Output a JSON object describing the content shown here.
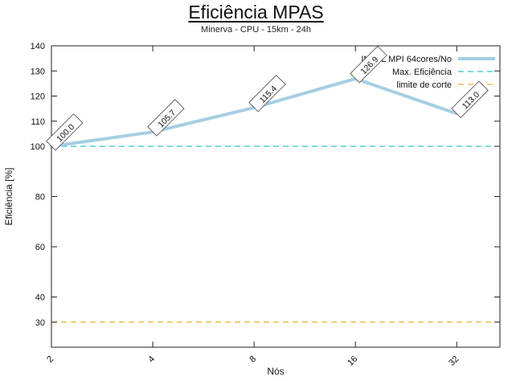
{
  "chart_data": {
    "type": "line",
    "title": "Eficiência MPAS",
    "subtitle": "Minerva - CPU - 15km - 24h",
    "xlabel": "Nós",
    "ylabel": "Eficiência [%]",
    "x_scale": "log2",
    "x": [
      2,
      4,
      8,
      16,
      32
    ],
    "xticks": [
      "2",
      "4",
      "8",
      "16",
      "32"
    ],
    "yticks": [
      140,
      130,
      120,
      110,
      100,
      80,
      60,
      40,
      30
    ],
    "ylim": [
      20,
      140
    ],
    "xlim": [
      2,
      43
    ],
    "grid": false,
    "legend_position": "top-right",
    "series": [
      {
        "name": "INTEL MPI 64cores/No",
        "values": [
          100.0,
          105.7,
          115.4,
          126.9,
          113.0
        ],
        "labels": [
          "100.0",
          "105.7",
          "115.4",
          "126.9",
          "113.0"
        ],
        "color": "#a6cee3",
        "style": "solid",
        "width": 4
      }
    ],
    "reference_lines": [
      {
        "name": "Max. Eficiência",
        "value": 100,
        "color": "#00b3b3",
        "style": "dashed"
      },
      {
        "name": "limite de corte",
        "value": 30,
        "color": "#e69f00",
        "style": "dashed"
      }
    ],
    "colors": {
      "border": "#222222",
      "text": "#111111",
      "label_box_border": "#444444"
    }
  }
}
